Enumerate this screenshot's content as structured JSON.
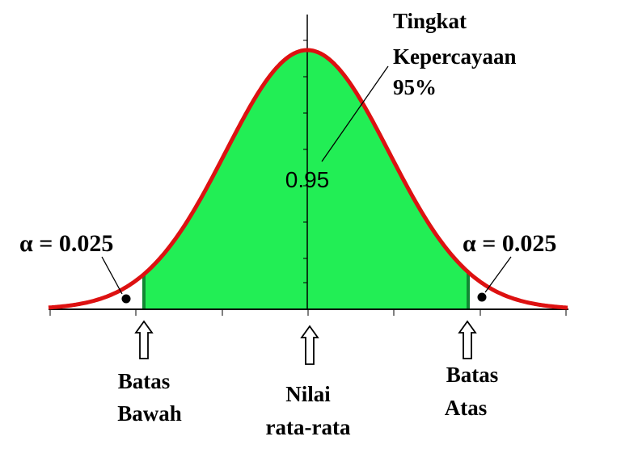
{
  "diagram": {
    "type": "normal-distribution",
    "confidence_title_line1": "Tingkat",
    "confidence_title_line2": "Kepercayaan",
    "confidence_title_line3": "95%",
    "center_area_value": "0.95",
    "left_tail_label": "α = 0.025",
    "right_tail_label": "α = 0.025",
    "lower_bound_line1": "Batas",
    "lower_bound_line2": "Bawah",
    "mean_line1": "Nilai",
    "mean_line2": "rata-rata",
    "upper_bound_line1": "Batas",
    "upper_bound_line2": "Atas",
    "colors": {
      "curve": "#dd1111",
      "fill": "#22ee55",
      "bound_line": "#118833",
      "axis": "#000000"
    }
  }
}
